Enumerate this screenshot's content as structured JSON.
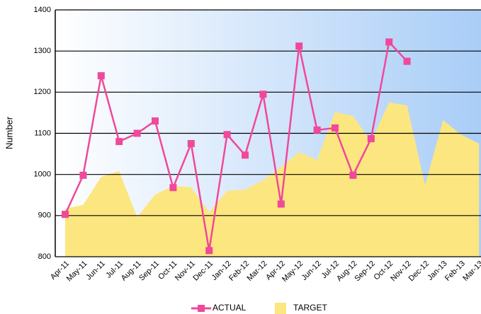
{
  "chart_data": {
    "type": "line_area",
    "y_label": "Number",
    "categories": [
      "Apr-11",
      "May-11",
      "Jun-11",
      "Jul-11",
      "Aug-11",
      "Sep-11",
      "Oct-11",
      "Nov-11",
      "Dec-11",
      "Jan-12",
      "Feb-12",
      "Mar-12",
      "Apr-12",
      "May-12",
      "Jun-12",
      "Jul-12",
      "Aug-12",
      "Sep-12",
      "Oct-12",
      "Nov-12",
      "Dec-12",
      "Jan-13",
      "Feb-13",
      "Mar-13"
    ],
    "series": [
      {
        "name": "ACTUAL",
        "color": "#f0489a",
        "kind": "line",
        "values": [
          903,
          998,
          1240,
          1080,
          1100,
          1130,
          968,
          1075,
          815,
          1097,
          1047,
          1195,
          928,
          1312,
          1108,
          1113,
          998,
          1087,
          1322,
          1275,
          null,
          null,
          null,
          null
        ]
      },
      {
        "name": "TARGET",
        "color": "#fce680",
        "kind": "area",
        "values": [
          917,
          926,
          994,
          1008,
          896,
          951,
          972,
          969,
          908,
          960,
          963,
          986,
          1018,
          1054,
          1035,
          1152,
          1142,
          1080,
          1175,
          1168,
          974,
          1132,
          1097,
          1075
        ]
      }
    ],
    "ylim": [
      800,
      1400
    ],
    "yticks": [
      800,
      900,
      1000,
      1100,
      1200,
      1300,
      1400
    ],
    "grid": true
  }
}
